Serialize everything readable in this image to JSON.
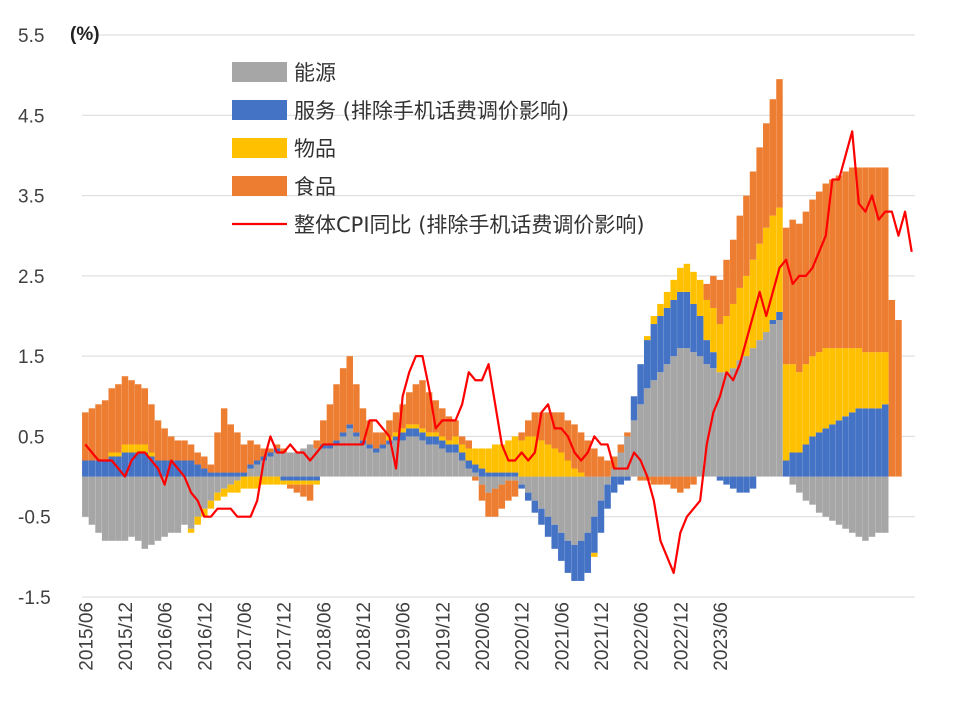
{
  "chart_data": {
    "type": "bar",
    "stacked": true,
    "unit_label": "(%)",
    "ylim": [
      -1.5,
      5.5
    ],
    "yticks": [
      5.5,
      4.5,
      3.5,
      2.5,
      1.5,
      0.5,
      -0.5,
      -1.5
    ],
    "grid": true,
    "legend_position": "top-left",
    "x_start": "2015/06",
    "x_tick_labels": [
      "2015/06",
      "2015/12",
      "2016/06",
      "2016/12",
      "2017/06",
      "2017/12",
      "2018/06",
      "2018/12",
      "2019/06",
      "2019/12",
      "2020/06",
      "2020/12",
      "2021/06",
      "2021/12",
      "2022/06",
      "2022/12",
      "2023/06"
    ],
    "legend": [
      "能源",
      "服务 (排除手机话费调价影响)",
      "物品",
      "食品",
      "整体CPI同比 (排除手机话费调价影响)"
    ],
    "colors": {
      "energy": "#a6a6a6",
      "services": "#4472c4",
      "goods": "#ffc000",
      "food": "#ed7d31",
      "cpi": "#ff0000"
    },
    "series": [
      {
        "name": "能源",
        "key": "energy",
        "values": [
          -0.5,
          -0.6,
          -0.7,
          -0.8,
          -0.8,
          -0.8,
          -0.8,
          -0.75,
          -0.8,
          -0.9,
          -0.85,
          -0.8,
          -0.75,
          -0.7,
          -0.7,
          -0.6,
          -0.65,
          -0.5,
          -0.4,
          -0.3,
          -0.2,
          -0.15,
          -0.1,
          -0.05,
          0,
          0.1,
          0.15,
          0.2,
          0.25,
          0.3,
          0.3,
          0.3,
          0.3,
          0.35,
          0.4,
          0.35,
          0.35,
          0.35,
          0.4,
          0.5,
          0.6,
          0.5,
          0.4,
          0.35,
          0.3,
          0.35,
          0.4,
          0.45,
          0.45,
          0.5,
          0.5,
          0.45,
          0.4,
          0.4,
          0.35,
          0.3,
          0.3,
          0.2,
          0.1,
          0.05,
          -0.1,
          -0.2,
          -0.15,
          -0.1,
          -0.05,
          -0.05,
          -0.1,
          -0.2,
          -0.3,
          -0.4,
          -0.5,
          -0.6,
          -0.7,
          -0.8,
          -0.85,
          -0.8,
          -0.7,
          -0.5,
          -0.3,
          -0.1,
          0.1,
          0.3,
          0.5,
          0.7,
          0.9,
          1.1,
          1.2,
          1.3,
          1.4,
          1.5,
          1.6,
          1.6,
          1.55,
          1.5,
          1.4,
          1.35,
          1.3,
          1.3,
          1.35,
          1.45,
          1.5,
          1.6,
          1.7,
          1.8,
          1.9,
          1.95,
          0,
          -0.1,
          -0.2,
          -0.3,
          -0.35,
          -0.45,
          -0.5,
          -0.55,
          -0.6,
          -0.65,
          -0.7,
          -0.75,
          -0.8,
          -0.75,
          -0.7,
          -0.7
        ]
      },
      {
        "name": "服务 (排除手机话费调价影响)",
        "key": "services",
        "values": [
          0.2,
          0.2,
          0.2,
          0.2,
          0.25,
          0.25,
          0.3,
          0.3,
          0.3,
          0.3,
          0.25,
          0.2,
          0.2,
          0.2,
          0.2,
          0.2,
          0.2,
          0.15,
          0.1,
          0.05,
          0.05,
          0.05,
          0.05,
          0.05,
          0.05,
          0.05,
          0.05,
          0.05,
          0.05,
          0.05,
          -0.05,
          -0.05,
          -0.05,
          -0.05,
          -0.05,
          -0.05,
          0.05,
          0.05,
          0.05,
          0.05,
          0.05,
          0.05,
          0.05,
          0.05,
          0.05,
          0.05,
          0.05,
          0.05,
          0.1,
          0.1,
          0.1,
          0.1,
          0.1,
          0.1,
          0.1,
          0.1,
          0.1,
          0.1,
          0.1,
          0.1,
          0.1,
          0.05,
          0.05,
          0.05,
          0.05,
          0.05,
          -0.05,
          -0.1,
          -0.15,
          -0.2,
          -0.25,
          -0.3,
          -0.35,
          -0.4,
          -0.45,
          -0.5,
          -0.5,
          -0.45,
          -0.4,
          -0.3,
          -0.2,
          -0.1,
          -0.05,
          0.3,
          0.5,
          0.6,
          0.7,
          0.7,
          0.7,
          0.7,
          0.7,
          0.7,
          0.6,
          0.5,
          0.3,
          0.2,
          -0.05,
          -0.1,
          -0.15,
          -0.2,
          -0.2,
          -0.15,
          0.0,
          0.0,
          0.05,
          0.1,
          0.2,
          0.3,
          0.3,
          0.4,
          0.5,
          0.55,
          0.6,
          0.65,
          0.7,
          0.75,
          0.8,
          0.85,
          0.85,
          0.85,
          0.85,
          0.9
        ]
      },
      {
        "name": "物品",
        "key": "goods",
        "values": [
          0,
          0,
          0,
          0,
          0.05,
          0.05,
          0.1,
          0.1,
          0.1,
          0.1,
          0.05,
          0,
          0,
          0,
          0,
          0,
          -0.05,
          -0.1,
          -0.1,
          -0.1,
          -0.1,
          -0.1,
          -0.1,
          -0.15,
          -0.15,
          -0.15,
          -0.15,
          -0.1,
          -0.1,
          -0.1,
          -0.05,
          -0.05,
          -0.05,
          -0.05,
          -0.05,
          -0.05,
          0,
          0,
          0,
          0,
          0,
          0,
          0,
          0,
          0,
          0,
          0.05,
          0.05,
          0.05,
          0.05,
          0.05,
          0.05,
          0.05,
          0.05,
          0.05,
          0.05,
          0.1,
          0.1,
          0.15,
          0.2,
          0.25,
          0.3,
          0.35,
          0.35,
          0.4,
          0.45,
          0.45,
          0.5,
          0.5,
          0.45,
          0.4,
          0.35,
          0.3,
          0.2,
          0.1,
          0.05,
          0,
          -0.05,
          0,
          0,
          0,
          0,
          0,
          0,
          0,
          0.05,
          0.1,
          0.15,
          0.2,
          0.25,
          0.3,
          0.35,
          0.4,
          0.45,
          0.5,
          0.55,
          0.6,
          0.7,
          0.8,
          0.9,
          1.0,
          1.1,
          1.2,
          1.3,
          1.3,
          1.3,
          1.2,
          1.1,
          1.0,
          1.0,
          1.0,
          1.0,
          1.0,
          0.95,
          0.9,
          0.85,
          0.8,
          0.75,
          0.7,
          0.7,
          0.7,
          0.65
        ]
      },
      {
        "name": "食品",
        "key": "food",
        "values": [
          0.6,
          0.65,
          0.7,
          0.75,
          0.8,
          0.85,
          0.85,
          0.8,
          0.75,
          0.7,
          0.6,
          0.5,
          0.4,
          0.3,
          0.25,
          0.25,
          0.2,
          0.15,
          0.15,
          0.1,
          0.5,
          0.8,
          0.6,
          0.5,
          0.35,
          0.3,
          0.2,
          0.1,
          0.05,
          0.05,
          0.05,
          -0.05,
          -0.1,
          -0.15,
          -0.2,
          0.1,
          0.3,
          0.5,
          0.7,
          0.8,
          0.85,
          0.6,
          0.4,
          0.3,
          0.2,
          0.15,
          0.2,
          0.25,
          0.3,
          0.4,
          0.5,
          0.6,
          0.5,
          0.4,
          0.35,
          0.3,
          0.2,
          0.1,
          0.1,
          -0.05,
          -0.2,
          -0.3,
          -0.35,
          -0.3,
          -0.25,
          -0.2,
          0.1,
          0.2,
          0.3,
          0.35,
          0.4,
          0.45,
          0.5,
          0.5,
          0.55,
          0.5,
          0.45,
          0.35,
          0.25,
          0.2,
          0.15,
          0.1,
          0.05,
          0.0,
          -0.05,
          -0.05,
          -0.1,
          -0.1,
          -0.1,
          -0.15,
          -0.2,
          -0.15,
          -0.1,
          0.0,
          0.2,
          0.4,
          0.55,
          0.7,
          0.8,
          0.9,
          1.0,
          1.1,
          1.2,
          1.3,
          1.45,
          1.6,
          1.7,
          1.8,
          1.85,
          1.9,
          1.95,
          2.0,
          2.05,
          2.1,
          2.15,
          2.2,
          2.25,
          2.25,
          2.3,
          2.3,
          2.3,
          2.3,
          2.2,
          1.95
        ]
      },
      {
        "name": "整体CPI同比 (排除手机话费调价影响)",
        "key": "cpi",
        "type": "line",
        "values": [
          0.4,
          0.3,
          0.2,
          0.2,
          0.2,
          0.1,
          0.0,
          0.2,
          0.3,
          0.3,
          0.2,
          0.1,
          -0.1,
          0.2,
          0.1,
          0.0,
          -0.2,
          -0.3,
          -0.5,
          -0.5,
          -0.4,
          -0.4,
          -0.4,
          -0.5,
          -0.5,
          -0.5,
          -0.3,
          0.2,
          0.5,
          0.3,
          0.3,
          0.4,
          0.3,
          0.3,
          0.2,
          0.3,
          0.4,
          0.4,
          0.4,
          0.4,
          0.4,
          0.4,
          0.4,
          0.7,
          0.7,
          0.6,
          0.5,
          0.1,
          1.0,
          1.3,
          1.5,
          1.5,
          1.1,
          0.6,
          0.7,
          0.7,
          0.7,
          0.9,
          1.3,
          1.2,
          1.2,
          1.4,
          0.9,
          0.4,
          0.2,
          0.2,
          0.3,
          0.2,
          0.3,
          0.8,
          0.9,
          0.6,
          0.6,
          0.5,
          0.3,
          0.2,
          0.3,
          0.5,
          0.4,
          0.4,
          0.1,
          0.1,
          0.1,
          0.3,
          0.2,
          0.0,
          -0.3,
          -0.8,
          -1.0,
          -1.2,
          -0.7,
          -0.5,
          -0.4,
          -0.3,
          0.4,
          0.8,
          1.0,
          1.3,
          1.2,
          1.4,
          1.7,
          2.0,
          2.3,
          2.0,
          2.3,
          2.6,
          2.7,
          2.4,
          2.5,
          2.5,
          2.6,
          2.8,
          3.0,
          3.7,
          3.7,
          4.0,
          4.3,
          3.4,
          3.3,
          3.5,
          3.2,
          3.3,
          3.3,
          3.0,
          3.3,
          2.8
        ]
      }
    ]
  }
}
